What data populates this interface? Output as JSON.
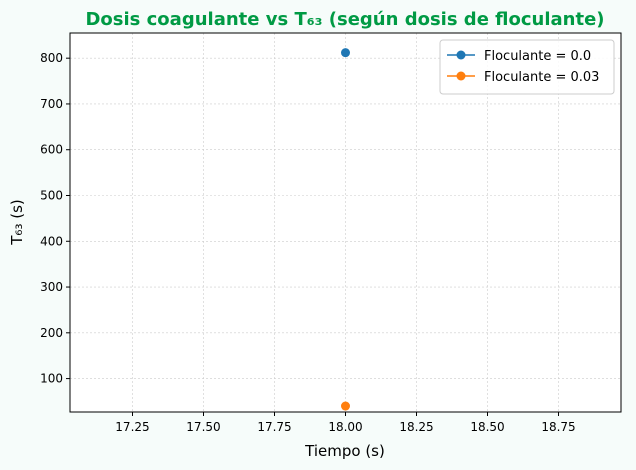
{
  "chart_data": {
    "type": "line",
    "title": "Dosis coagulante vs T₆₃ (según dosis de floculante)",
    "title_color": "#009a44",
    "xlabel": "Tiempo (s)",
    "ylabel": "T₆₃ (s)",
    "xlim": [
      17.03,
      18.97
    ],
    "ylim": [
      27,
      855
    ],
    "x_ticks": [
      17.25,
      17.5,
      17.75,
      18.0,
      18.25,
      18.5,
      18.75
    ],
    "x_tick_labels": [
      "17.25",
      "17.50",
      "17.75",
      "18.00",
      "18.25",
      "18.50",
      "18.75"
    ],
    "y_ticks": [
      100,
      200,
      300,
      400,
      500,
      600,
      700,
      800
    ],
    "y_tick_labels": [
      "100",
      "200",
      "300",
      "400",
      "500",
      "600",
      "700",
      "800"
    ],
    "grid": true,
    "legend_position": "top-right",
    "series": [
      {
        "name": "Floculante = 0.0",
        "color": "#1f77b4",
        "x": [
          18.0
        ],
        "y": [
          812
        ]
      },
      {
        "name": "Floculante = 0.03",
        "color": "#ff7f0e",
        "x": [
          18.0
        ],
        "y": [
          40
        ]
      }
    ]
  }
}
